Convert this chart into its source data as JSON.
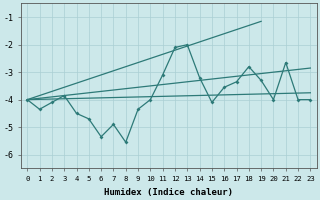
{
  "xlabel": "Humidex (Indice chaleur)",
  "background_color": "#cce8ea",
  "grid_color": "#aacfd4",
  "line_color": "#2d7a78",
  "x": [
    0,
    1,
    2,
    3,
    4,
    5,
    6,
    7,
    8,
    9,
    10,
    11,
    12,
    13,
    14,
    15,
    16,
    17,
    18,
    19,
    20,
    21,
    22,
    23
  ],
  "zigzag": [
    -4.0,
    -4.35,
    -4.1,
    -3.85,
    -4.5,
    -4.7,
    -5.35,
    -4.9,
    -5.55,
    -4.35,
    -4.0,
    -3.1,
    -2.1,
    -2.0,
    -3.2,
    -4.1,
    -3.55,
    -3.35,
    -2.8,
    -3.3,
    -4.0,
    -2.65,
    -4.0,
    -4.0
  ],
  "line_steep": [
    [
      -4.0,
      0
    ],
    [
      -1.15,
      19
    ]
  ],
  "line_medium": [
    [
      -4.0,
      0
    ],
    [
      -2.85,
      23
    ]
  ],
  "line_flat": [
    [
      -4.0,
      0
    ],
    [
      -3.75,
      23
    ]
  ],
  "ylim": [
    -6.5,
    -0.5
  ],
  "xlim": [
    -0.5,
    23.5
  ],
  "yticks": [
    -6,
    -5,
    -4,
    -3,
    -2,
    -1
  ]
}
